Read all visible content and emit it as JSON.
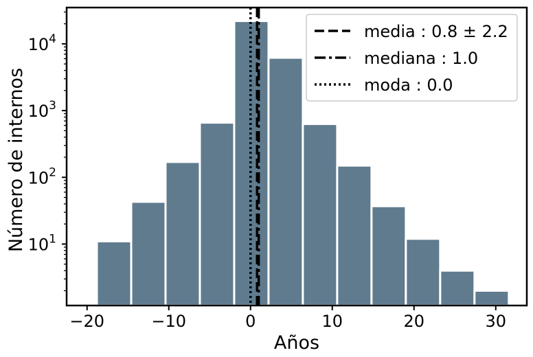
{
  "chart_data": {
    "type": "bar",
    "xlabel": "Años",
    "ylabel": "Número de internos",
    "y_scale": "log",
    "ylim": [
      1.2,
      35000
    ],
    "xlim": [
      -22.5,
      33.8
    ],
    "x_ticks": [
      -20,
      -10,
      0,
      10,
      20,
      30
    ],
    "x_tick_labels": [
      "−20",
      "−10",
      "0",
      "10",
      "20",
      "30"
    ],
    "y_ticks": [
      10,
      100,
      1000,
      10000
    ],
    "y_tick_base": "10",
    "y_tick_exponents": [
      "1",
      "2",
      "3",
      "4"
    ],
    "bar_color": "#607b8e",
    "bins": [
      {
        "x0": -18.8,
        "x1": -14.6,
        "value": 11
      },
      {
        "x0": -14.6,
        "x1": -10.4,
        "value": 43
      },
      {
        "x0": -10.4,
        "x1": -6.2,
        "value": 170
      },
      {
        "x0": -6.2,
        "x1": -2.0,
        "value": 660
      },
      {
        "x0": -2.0,
        "x1": 2.2,
        "value": 22000
      },
      {
        "x0": 2.2,
        "x1": 6.4,
        "value": 6200
      },
      {
        "x0": 6.4,
        "x1": 10.6,
        "value": 630
      },
      {
        "x0": 10.6,
        "x1": 14.8,
        "value": 150
      },
      {
        "x0": 14.8,
        "x1": 19.0,
        "value": 37
      },
      {
        "x0": 19.0,
        "x1": 23.2,
        "value": 12
      },
      {
        "x0": 23.2,
        "x1": 27.4,
        "value": 4
      },
      {
        "x0": 27.4,
        "x1": 31.6,
        "value": 2
      }
    ],
    "lines": [
      {
        "name": "media",
        "value": 0.8,
        "style": "dashed",
        "label": "media : 0.8 ± 2.2"
      },
      {
        "name": "mediana",
        "value": 1.0,
        "style": "dashdot",
        "label": "mediana : 1.0"
      },
      {
        "name": "moda",
        "value": 0.0,
        "style": "dotted",
        "label": "moda : 0.0"
      }
    ],
    "legend_position": "top-right",
    "grid": false
  }
}
